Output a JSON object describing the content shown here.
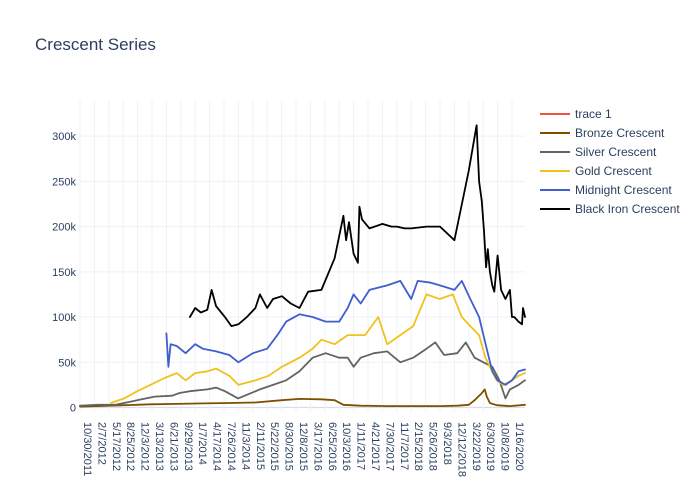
{
  "chart_data": {
    "type": "line",
    "title": "Crescent Series",
    "xlabel": "",
    "ylabel": "",
    "x_tick_labels": [
      "10/30/2011",
      "2/7/2012",
      "5/17/2012",
      "8/25/2012",
      "12/3/2012",
      "3/13/2013",
      "6/21/2013",
      "9/29/2013",
      "1/7/2014",
      "4/17/2014",
      "7/26/2014",
      "11/3/2014",
      "2/11/2015",
      "5/22/2015",
      "8/30/2015",
      "12/8/2015",
      "3/17/2016",
      "6/25/2016",
      "10/3/2016",
      "1/11/2017",
      "4/21/2017",
      "7/30/2017",
      "11/7/2017",
      "2/15/2018",
      "5/26/2018",
      "9/3/2018",
      "12/12/2018",
      "3/22/2019",
      "6/30/2019",
      "10/8/2019",
      "1/16/2020"
    ],
    "y_ticks": [
      0,
      50000,
      100000,
      150000,
      200000,
      250000,
      300000
    ],
    "y_tick_labels": [
      "0",
      "50k",
      "100k",
      "150k",
      "200k",
      "250k",
      "300k"
    ],
    "ylim": [
      -5000,
      340000
    ],
    "x_range": [
      "2011-10-30",
      "2020-04-15"
    ],
    "grid": true,
    "legend_position": "right",
    "series": [
      {
        "name": "trace 1",
        "color": "#ef553b",
        "points": []
      },
      {
        "name": "Bronze Crescent",
        "color": "#7f4f00",
        "points": [
          [
            "2011-10-30",
            1000
          ],
          [
            "2012-03-01",
            1500
          ],
          [
            "2012-09-01",
            2500
          ],
          [
            "2013-03-01",
            3500
          ],
          [
            "2013-09-01",
            4000
          ],
          [
            "2014-03-01",
            4500
          ],
          [
            "2014-09-01",
            5000
          ],
          [
            "2015-03-01",
            5500
          ],
          [
            "2015-09-01",
            8000
          ],
          [
            "2016-01-01",
            9500
          ],
          [
            "2016-06-01",
            9000
          ],
          [
            "2016-09-01",
            8000
          ],
          [
            "2016-11-01",
            3000
          ],
          [
            "2017-03-01",
            2000
          ],
          [
            "2017-09-01",
            1500
          ],
          [
            "2018-03-01",
            1500
          ],
          [
            "2018-09-01",
            1500
          ],
          [
            "2019-01-01",
            2000
          ],
          [
            "2019-03-22",
            3000
          ],
          [
            "2019-05-01",
            8000
          ],
          [
            "2019-06-15",
            15000
          ],
          [
            "2019-07-10",
            20000
          ],
          [
            "2019-07-25",
            12000
          ],
          [
            "2019-08-15",
            5000
          ],
          [
            "2019-10-01",
            2500
          ],
          [
            "2020-01-01",
            1500
          ],
          [
            "2020-04-15",
            3000
          ]
        ]
      },
      {
        "name": "Silver Crescent",
        "color": "#636363",
        "points": [
          [
            "2011-10-30",
            2000
          ],
          [
            "2012-03-01",
            3000
          ],
          [
            "2012-07-01",
            3000
          ],
          [
            "2012-10-01",
            6000
          ],
          [
            "2013-01-01",
            9000
          ],
          [
            "2013-04-01",
            12000
          ],
          [
            "2013-08-01",
            13000
          ],
          [
            "2013-09-20",
            16000
          ],
          [
            "2013-12-01",
            18000
          ],
          [
            "2014-04-01",
            20000
          ],
          [
            "2014-06-01",
            22000
          ],
          [
            "2014-08-01",
            18000
          ],
          [
            "2014-11-01",
            10000
          ],
          [
            "2015-01-01",
            14000
          ],
          [
            "2015-04-01",
            20000
          ],
          [
            "2015-07-01",
            25000
          ],
          [
            "2015-10-01",
            30000
          ],
          [
            "2016-01-01",
            40000
          ],
          [
            "2016-04-01",
            55000
          ],
          [
            "2016-07-01",
            60000
          ],
          [
            "2016-10-01",
            55000
          ],
          [
            "2016-12-01",
            55000
          ],
          [
            "2017-01-11",
            45000
          ],
          [
            "2017-03-01",
            55000
          ],
          [
            "2017-06-01",
            60000
          ],
          [
            "2017-09-01",
            62000
          ],
          [
            "2017-12-01",
            50000
          ],
          [
            "2018-03-01",
            55000
          ],
          [
            "2018-06-01",
            65000
          ],
          [
            "2018-08-01",
            72000
          ],
          [
            "2018-10-01",
            58000
          ],
          [
            "2019-01-01",
            60000
          ],
          [
            "2019-03-01",
            72000
          ],
          [
            "2019-05-01",
            55000
          ],
          [
            "2019-07-01",
            50000
          ],
          [
            "2019-09-01",
            45000
          ],
          [
            "2019-10-20",
            30000
          ],
          [
            "2019-12-01",
            10000
          ],
          [
            "2020-01-01",
            20000
          ],
          [
            "2020-03-01",
            25000
          ],
          [
            "2020-04-15",
            30000
          ]
        ]
      },
      {
        "name": "Gold Crescent",
        "color": "#f0c21b",
        "points": [
          [
            "2012-06-01",
            5000
          ],
          [
            "2012-09-01",
            10000
          ],
          [
            "2012-12-01",
            18000
          ],
          [
            "2013-03-01",
            25000
          ],
          [
            "2013-06-01",
            32000
          ],
          [
            "2013-09-01",
            38000
          ],
          [
            "2013-11-01",
            30000
          ],
          [
            "2014-01-07",
            38000
          ],
          [
            "2014-04-01",
            40000
          ],
          [
            "2014-06-01",
            43000
          ],
          [
            "2014-09-01",
            35000
          ],
          [
            "2014-11-03",
            25000
          ],
          [
            "2015-03-01",
            30000
          ],
          [
            "2015-06-01",
            35000
          ],
          [
            "2015-09-01",
            45000
          ],
          [
            "2016-01-01",
            55000
          ],
          [
            "2016-04-01",
            65000
          ],
          [
            "2016-06-01",
            75000
          ],
          [
            "2016-09-01",
            70000
          ],
          [
            "2016-12-01",
            80000
          ],
          [
            "2017-04-01",
            80000
          ],
          [
            "2017-07-01",
            100000
          ],
          [
            "2017-09-01",
            70000
          ],
          [
            "2017-12-01",
            80000
          ],
          [
            "2018-03-01",
            90000
          ],
          [
            "2018-06-01",
            125000
          ],
          [
            "2018-09-01",
            120000
          ],
          [
            "2018-12-01",
            125000
          ],
          [
            "2019-02-01",
            100000
          ],
          [
            "2019-04-01",
            90000
          ],
          [
            "2019-06-01",
            80000
          ],
          [
            "2019-07-15",
            55000
          ],
          [
            "2019-08-15",
            45000
          ],
          [
            "2019-10-01",
            30000
          ],
          [
            "2019-11-15",
            25000
          ],
          [
            "2020-01-16",
            30000
          ],
          [
            "2020-03-01",
            35000
          ],
          [
            "2020-04-15",
            38000
          ]
        ]
      },
      {
        "name": "Midnight Crescent",
        "color": "#3f5fcf",
        "points": [
          [
            "2013-06-21",
            82000
          ],
          [
            "2013-07-05",
            45000
          ],
          [
            "2013-07-20",
            70000
          ],
          [
            "2013-09-01",
            68000
          ],
          [
            "2013-11-01",
            60000
          ],
          [
            "2014-01-07",
            70000
          ],
          [
            "2014-03-01",
            65000
          ],
          [
            "2014-06-01",
            62000
          ],
          [
            "2014-09-01",
            58000
          ],
          [
            "2014-11-03",
            50000
          ],
          [
            "2015-02-11",
            60000
          ],
          [
            "2015-05-22",
            65000
          ],
          [
            "2015-08-01",
            80000
          ],
          [
            "2015-10-01",
            95000
          ],
          [
            "2016-01-01",
            103000
          ],
          [
            "2016-04-01",
            100000
          ],
          [
            "2016-07-01",
            95000
          ],
          [
            "2016-10-03",
            95000
          ],
          [
            "2016-12-01",
            110000
          ],
          [
            "2017-01-11",
            125000
          ],
          [
            "2017-03-01",
            115000
          ],
          [
            "2017-05-01",
            130000
          ],
          [
            "2017-09-01",
            135000
          ],
          [
            "2017-12-01",
            140000
          ],
          [
            "2018-02-15",
            120000
          ],
          [
            "2018-04-01",
            140000
          ],
          [
            "2018-07-01",
            138000
          ],
          [
            "2018-09-03",
            135000
          ],
          [
            "2018-12-12",
            130000
          ],
          [
            "2019-02-01",
            140000
          ],
          [
            "2019-04-01",
            120000
          ],
          [
            "2019-06-01",
            100000
          ],
          [
            "2019-07-01",
            80000
          ],
          [
            "2019-08-01",
            60000
          ],
          [
            "2019-09-01",
            40000
          ],
          [
            "2019-10-08",
            30000
          ],
          [
            "2019-12-01",
            25000
          ],
          [
            "2020-01-16",
            30000
          ],
          [
            "2020-03-01",
            40000
          ],
          [
            "2020-04-15",
            42000
          ]
        ]
      },
      {
        "name": "Black Iron Crescent",
        "color": "#000000",
        "points": [
          [
            "2013-12-01",
            100000
          ],
          [
            "2014-01-07",
            110000
          ],
          [
            "2014-02-15",
            105000
          ],
          [
            "2014-04-01",
            108000
          ],
          [
            "2014-05-01",
            130000
          ],
          [
            "2014-06-01",
            112000
          ],
          [
            "2014-08-01",
            100000
          ],
          [
            "2014-09-15",
            90000
          ],
          [
            "2014-11-03",
            92000
          ],
          [
            "2015-01-01",
            100000
          ],
          [
            "2015-03-01",
            110000
          ],
          [
            "2015-04-01",
            125000
          ],
          [
            "2015-05-22",
            110000
          ],
          [
            "2015-07-01",
            120000
          ],
          [
            "2015-09-01",
            123000
          ],
          [
            "2015-11-01",
            115000
          ],
          [
            "2016-01-01",
            110000
          ],
          [
            "2016-03-01",
            128000
          ],
          [
            "2016-06-01",
            130000
          ],
          [
            "2016-09-01",
            165000
          ],
          [
            "2016-11-01",
            212000
          ],
          [
            "2016-11-20",
            185000
          ],
          [
            "2016-12-10",
            205000
          ],
          [
            "2017-01-11",
            170000
          ],
          [
            "2017-02-10",
            160000
          ],
          [
            "2017-02-20",
            222000
          ],
          [
            "2017-03-10",
            208000
          ],
          [
            "2017-05-01",
            198000
          ],
          [
            "2017-07-30",
            203000
          ],
          [
            "2017-10-01",
            200000
          ],
          [
            "2017-11-07",
            200000
          ],
          [
            "2018-01-01",
            198000
          ],
          [
            "2018-02-15",
            198000
          ],
          [
            "2018-06-01",
            200000
          ],
          [
            "2018-09-03",
            200000
          ],
          [
            "2018-12-12",
            185000
          ],
          [
            "2019-03-22",
            262000
          ],
          [
            "2019-05-15",
            312000
          ],
          [
            "2019-06-01",
            250000
          ],
          [
            "2019-06-20",
            228000
          ],
          [
            "2019-07-05",
            195000
          ],
          [
            "2019-07-20",
            155000
          ],
          [
            "2019-08-01",
            175000
          ],
          [
            "2019-08-15",
            150000
          ],
          [
            "2019-09-01",
            135000
          ],
          [
            "2019-09-15",
            128000
          ],
          [
            "2019-10-08",
            168000
          ],
          [
            "2019-11-01",
            130000
          ],
          [
            "2019-12-01",
            120000
          ],
          [
            "2020-01-01",
            130000
          ],
          [
            "2020-01-16",
            100000
          ],
          [
            "2020-02-01",
            100000
          ],
          [
            "2020-03-01",
            95000
          ],
          [
            "2020-03-25",
            92000
          ],
          [
            "2020-04-01",
            110000
          ],
          [
            "2020-04-15",
            100000
          ]
        ]
      }
    ]
  }
}
